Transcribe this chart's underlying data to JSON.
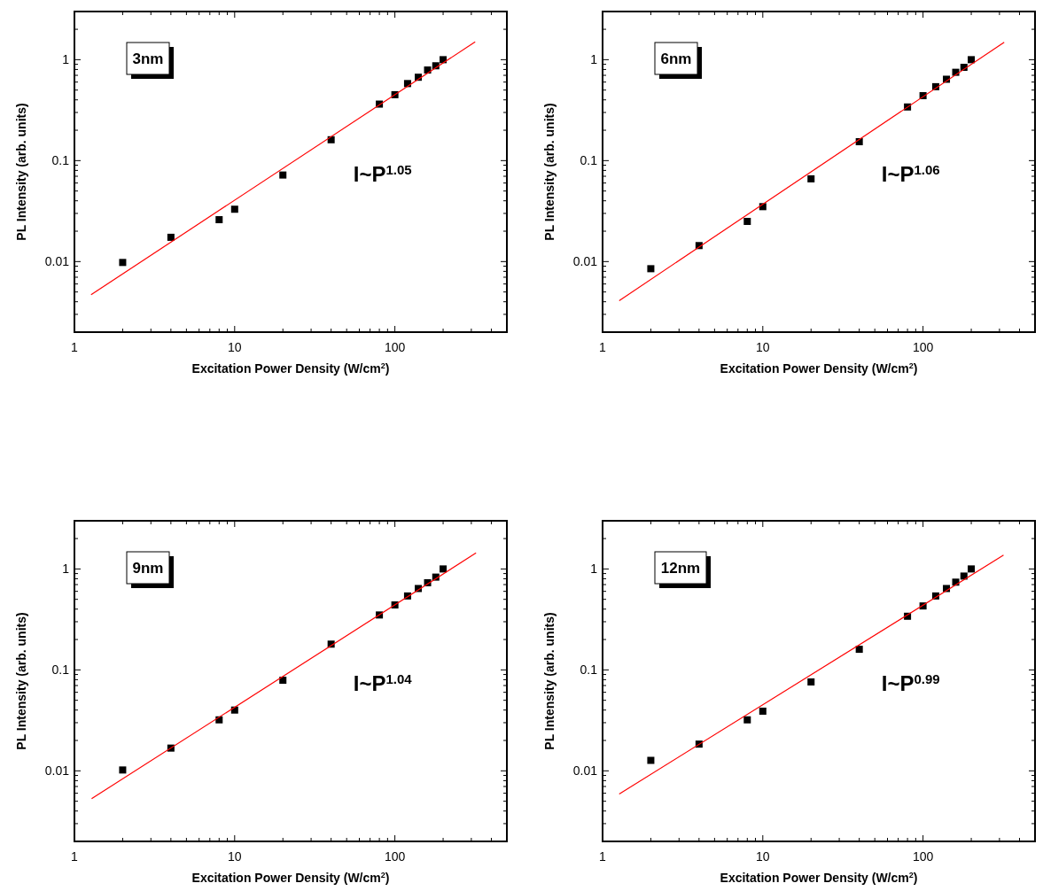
{
  "chart_data": [
    {
      "type": "scatter",
      "xlabel": "Excitation Power Density (W/cm$^{2}$)",
      "ylabel": "PL Intensity (arb. units)",
      "annotations": [
        "3nm",
        "I~P$^{1.05}$"
      ],
      "log": "xy",
      "marker": "square",
      "xlim": [
        1,
        500
      ],
      "ylim": [
        0.002,
        3
      ],
      "xticks": [
        1,
        {
          "value": 2,
          "label": null
        },
        {
          "value": 3,
          "label": null
        },
        {
          "value": 4,
          "label": null
        },
        {
          "value": 5,
          "label": null
        },
        {
          "value": 6,
          "label": null
        },
        {
          "value": 7,
          "label": null
        },
        {
          "value": 8,
          "label": null
        },
        {
          "value": 9,
          "label": null
        },
        10,
        {
          "value": 20,
          "label": null
        },
        {
          "value": 30,
          "label": null
        },
        {
          "value": 40,
          "label": null
        },
        {
          "value": 50,
          "label": null
        },
        {
          "value": 60,
          "label": null
        },
        {
          "value": 70,
          "label": null
        },
        {
          "value": 80,
          "label": null
        },
        {
          "value": 90,
          "label": null
        },
        100,
        {
          "value": 200,
          "label": null
        },
        {
          "value": 300,
          "label": null
        },
        {
          "value": 400,
          "label": null
        },
        {
          "value": 500,
          "label": null
        }
      ],
      "yticks": [
        {
          "value": 0.002,
          "label": null
        },
        {
          "value": 0.003,
          "label": null
        },
        {
          "value": 0.004,
          "label": null
        },
        {
          "value": 0.005,
          "label": null
        },
        {
          "value": 0.006,
          "label": null
        },
        {
          "value": 0.007,
          "label": null
        },
        {
          "value": 0.008,
          "label": null
        },
        {
          "value": 0.009,
          "label": null
        },
        0.01,
        {
          "value": 0.02,
          "label": null
        },
        {
          "value": 0.03,
          "label": null
        },
        {
          "value": 0.04,
          "label": null
        },
        {
          "value": 0.05,
          "label": null
        },
        {
          "value": 0.06,
          "label": null
        },
        {
          "value": 0.07,
          "label": null
        },
        {
          "value": 0.08,
          "label": null
        },
        {
          "value": 0.09,
          "label": null
        },
        0.1,
        {
          "value": 0.2,
          "label": null
        },
        {
          "value": 0.3,
          "label": null
        },
        {
          "value": 0.4,
          "label": null
        },
        {
          "value": 0.5,
          "label": null
        },
        {
          "value": 0.6,
          "label": null
        },
        {
          "value": 0.7,
          "label": null
        },
        {
          "value": 0.8,
          "label": null
        },
        {
          "value": 0.9,
          "label": null
        },
        1,
        {
          "value": 2,
          "label": null
        },
        {
          "value": 3,
          "label": null
        }
      ],
      "series": [
        {
          "type": "scatter",
          "color": "#000000",
          "x": [
            2,
            4,
            8,
            10,
            20,
            40,
            80,
            100,
            120,
            140,
            160,
            180,
            200
          ],
          "values": [
            0.0098,
            0.0174,
            0.026,
            0.033,
            0.072,
            0.161,
            0.363,
            0.45,
            0.58,
            0.67,
            0.79,
            0.87,
            1.0
          ]
        },
        {
          "type": "line",
          "color": "#ff0000",
          "marker": "none",
          "line_style": "solid",
          "x": [
            1.27,
            317
          ],
          "values": [
            0.0047,
            1.5
          ]
        }
      ]
    },
    {
      "type": "scatter",
      "xlabel": "Excitation Power Density (W/cm$^{2}$)",
      "ylabel": "PL Intensity (arb. units)",
      "annotations": [
        "6nm",
        "I~P$^{1.06}$"
      ],
      "log": "xy",
      "marker": "square",
      "xlim": [
        1,
        500
      ],
      "ylim": [
        0.002,
        3
      ],
      "xticks": [
        1,
        {
          "value": 2,
          "label": null
        },
        {
          "value": 3,
          "label": null
        },
        {
          "value": 4,
          "label": null
        },
        {
          "value": 5,
          "label": null
        },
        {
          "value": 6,
          "label": null
        },
        {
          "value": 7,
          "label": null
        },
        {
          "value": 8,
          "label": null
        },
        {
          "value": 9,
          "label": null
        },
        10,
        {
          "value": 20,
          "label": null
        },
        {
          "value": 30,
          "label": null
        },
        {
          "value": 40,
          "label": null
        },
        {
          "value": 50,
          "label": null
        },
        {
          "value": 60,
          "label": null
        },
        {
          "value": 70,
          "label": null
        },
        {
          "value": 80,
          "label": null
        },
        {
          "value": 90,
          "label": null
        },
        100,
        {
          "value": 200,
          "label": null
        },
        {
          "value": 300,
          "label": null
        },
        {
          "value": 400,
          "label": null
        },
        {
          "value": 500,
          "label": null
        }
      ],
      "yticks": [
        {
          "value": 0.002,
          "label": null
        },
        {
          "value": 0.003,
          "label": null
        },
        {
          "value": 0.004,
          "label": null
        },
        {
          "value": 0.005,
          "label": null
        },
        {
          "value": 0.006,
          "label": null
        },
        {
          "value": 0.007,
          "label": null
        },
        {
          "value": 0.008,
          "label": null
        },
        {
          "value": 0.009,
          "label": null
        },
        0.01,
        {
          "value": 0.02,
          "label": null
        },
        {
          "value": 0.03,
          "label": null
        },
        {
          "value": 0.04,
          "label": null
        },
        {
          "value": 0.05,
          "label": null
        },
        {
          "value": 0.06,
          "label": null
        },
        {
          "value": 0.07,
          "label": null
        },
        {
          "value": 0.08,
          "label": null
        },
        {
          "value": 0.09,
          "label": null
        },
        0.1,
        {
          "value": 0.2,
          "label": null
        },
        {
          "value": 0.3,
          "label": null
        },
        {
          "value": 0.4,
          "label": null
        },
        {
          "value": 0.5,
          "label": null
        },
        {
          "value": 0.6,
          "label": null
        },
        {
          "value": 0.7,
          "label": null
        },
        {
          "value": 0.8,
          "label": null
        },
        {
          "value": 0.9,
          "label": null
        },
        1,
        {
          "value": 2,
          "label": null
        },
        {
          "value": 3,
          "label": null
        }
      ],
      "series": [
        {
          "type": "scatter",
          "color": "#000000",
          "x": [
            2,
            4,
            8,
            10,
            20,
            40,
            80,
            100,
            120,
            140,
            160,
            180,
            200
          ],
          "values": [
            0.0085,
            0.0144,
            0.025,
            0.035,
            0.066,
            0.154,
            0.34,
            0.44,
            0.54,
            0.64,
            0.75,
            0.84,
            1.0
          ]
        },
        {
          "type": "line",
          "color": "#ff0000",
          "marker": "none",
          "line_style": "solid",
          "x": [
            1.27,
            321
          ],
          "values": [
            0.0041,
            1.49
          ]
        }
      ]
    },
    {
      "type": "scatter",
      "xlabel": "Excitation Power Density (W/cm$^{2}$)",
      "ylabel": "PL Intensity (arb. units)",
      "annotations": [
        "9nm",
        "I~P$^{1.04}$"
      ],
      "log": "xy",
      "marker": "square",
      "xlim": [
        1,
        500
      ],
      "ylim": [
        0.002,
        3
      ],
      "xticks": [
        1,
        {
          "value": 2,
          "label": null
        },
        {
          "value": 3,
          "label": null
        },
        {
          "value": 4,
          "label": null
        },
        {
          "value": 5,
          "label": null
        },
        {
          "value": 6,
          "label": null
        },
        {
          "value": 7,
          "label": null
        },
        {
          "value": 8,
          "label": null
        },
        {
          "value": 9,
          "label": null
        },
        10,
        {
          "value": 20,
          "label": null
        },
        {
          "value": 30,
          "label": null
        },
        {
          "value": 40,
          "label": null
        },
        {
          "value": 50,
          "label": null
        },
        {
          "value": 60,
          "label": null
        },
        {
          "value": 70,
          "label": null
        },
        {
          "value": 80,
          "label": null
        },
        {
          "value": 90,
          "label": null
        },
        100,
        {
          "value": 200,
          "label": null
        },
        {
          "value": 300,
          "label": null
        },
        {
          "value": 400,
          "label": null
        },
        {
          "value": 500,
          "label": null
        }
      ],
      "yticks": [
        {
          "value": 0.002,
          "label": null
        },
        {
          "value": 0.003,
          "label": null
        },
        {
          "value": 0.004,
          "label": null
        },
        {
          "value": 0.005,
          "label": null
        },
        {
          "value": 0.006,
          "label": null
        },
        {
          "value": 0.007,
          "label": null
        },
        {
          "value": 0.008,
          "label": null
        },
        {
          "value": 0.009,
          "label": null
        },
        0.01,
        {
          "value": 0.02,
          "label": null
        },
        {
          "value": 0.03,
          "label": null
        },
        {
          "value": 0.04,
          "label": null
        },
        {
          "value": 0.05,
          "label": null
        },
        {
          "value": 0.06,
          "label": null
        },
        {
          "value": 0.07,
          "label": null
        },
        {
          "value": 0.08,
          "label": null
        },
        {
          "value": 0.09,
          "label": null
        },
        0.1,
        {
          "value": 0.2,
          "label": null
        },
        {
          "value": 0.3,
          "label": null
        },
        {
          "value": 0.4,
          "label": null
        },
        {
          "value": 0.5,
          "label": null
        },
        {
          "value": 0.6,
          "label": null
        },
        {
          "value": 0.7,
          "label": null
        },
        {
          "value": 0.8,
          "label": null
        },
        {
          "value": 0.9,
          "label": null
        },
        1,
        {
          "value": 2,
          "label": null
        },
        {
          "value": 3,
          "label": null
        }
      ],
      "series": [
        {
          "type": "scatter",
          "color": "#000000",
          "x": [
            2,
            4,
            8,
            10,
            20,
            40,
            80,
            100,
            120,
            140,
            160,
            180,
            200
          ],
          "values": [
            0.0102,
            0.0168,
            0.032,
            0.04,
            0.079,
            0.18,
            0.35,
            0.44,
            0.54,
            0.64,
            0.73,
            0.83,
            1.0
          ]
        },
        {
          "type": "line",
          "color": "#ff0000",
          "marker": "none",
          "line_style": "solid",
          "x": [
            1.28,
            321
          ],
          "values": [
            0.0053,
            1.44
          ]
        }
      ]
    },
    {
      "type": "scatter",
      "xlabel": "Excitation Power Density (W/cm$^{2}$)",
      "ylabel": "PL Intensity (arb. units)",
      "annotations": [
        "12nm",
        "I~P$^{0.99}$"
      ],
      "log": "xy",
      "marker": "square",
      "xlim": [
        1,
        500
      ],
      "ylim": [
        0.002,
        3
      ],
      "xticks": [
        1,
        {
          "value": 2,
          "label": null
        },
        {
          "value": 3,
          "label": null
        },
        {
          "value": 4,
          "label": null
        },
        {
          "value": 5,
          "label": null
        },
        {
          "value": 6,
          "label": null
        },
        {
          "value": 7,
          "label": null
        },
        {
          "value": 8,
          "label": null
        },
        {
          "value": 9,
          "label": null
        },
        10,
        {
          "value": 20,
          "label": null
        },
        {
          "value": 30,
          "label": null
        },
        {
          "value": 40,
          "label": null
        },
        {
          "value": 50,
          "label": null
        },
        {
          "value": 60,
          "label": null
        },
        {
          "value": 70,
          "label": null
        },
        {
          "value": 80,
          "label": null
        },
        {
          "value": 90,
          "label": null
        },
        100,
        {
          "value": 200,
          "label": null
        },
        {
          "value": 300,
          "label": null
        },
        {
          "value": 400,
          "label": null
        },
        {
          "value": 500,
          "label": null
        }
      ],
      "yticks": [
        {
          "value": 0.002,
          "label": null
        },
        {
          "value": 0.003,
          "label": null
        },
        {
          "value": 0.004,
          "label": null
        },
        {
          "value": 0.005,
          "label": null
        },
        {
          "value": 0.006,
          "label": null
        },
        {
          "value": 0.007,
          "label": null
        },
        {
          "value": 0.008,
          "label": null
        },
        {
          "value": 0.009,
          "label": null
        },
        0.01,
        {
          "value": 0.02,
          "label": null
        },
        {
          "value": 0.03,
          "label": null
        },
        {
          "value": 0.04,
          "label": null
        },
        {
          "value": 0.05,
          "label": null
        },
        {
          "value": 0.06,
          "label": null
        },
        {
          "value": 0.07,
          "label": null
        },
        {
          "value": 0.08,
          "label": null
        },
        {
          "value": 0.09,
          "label": null
        },
        0.1,
        {
          "value": 0.2,
          "label": null
        },
        {
          "value": 0.3,
          "label": null
        },
        {
          "value": 0.4,
          "label": null
        },
        {
          "value": 0.5,
          "label": null
        },
        {
          "value": 0.6,
          "label": null
        },
        {
          "value": 0.7,
          "label": null
        },
        {
          "value": 0.8,
          "label": null
        },
        {
          "value": 0.9,
          "label": null
        },
        1,
        {
          "value": 2,
          "label": null
        },
        {
          "value": 3,
          "label": null
        }
      ],
      "series": [
        {
          "type": "scatter",
          "color": "#000000",
          "x": [
            2,
            4,
            8,
            10,
            20,
            40,
            80,
            100,
            120,
            140,
            160,
            180,
            200
          ],
          "values": [
            0.0127,
            0.0184,
            0.032,
            0.039,
            0.076,
            0.16,
            0.34,
            0.43,
            0.54,
            0.64,
            0.74,
            0.85,
            1.0
          ]
        },
        {
          "type": "line",
          "color": "#ff0000",
          "marker": "none",
          "line_style": "solid",
          "x": [
            1.27,
            318
          ],
          "values": [
            0.0059,
            1.37
          ]
        }
      ]
    }
  ]
}
